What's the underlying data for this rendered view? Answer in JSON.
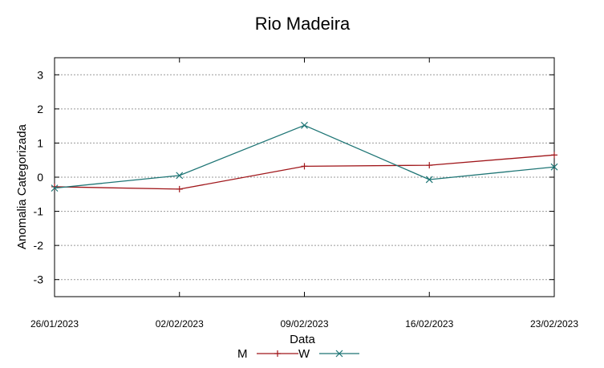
{
  "chart_data": {
    "type": "line",
    "title": "Rio Madeira",
    "xlabel": "Data",
    "ylabel": "Anomalia Categorizada",
    "categories": [
      "26/01/2023",
      "02/02/2023",
      "09/02/2023",
      "16/02/2023",
      "23/02/2023"
    ],
    "ylim": [
      -3.5,
      3.5
    ],
    "yticks": [
      "-3",
      "-2",
      "-1",
      "0",
      "1",
      "2",
      "3"
    ],
    "grid": true,
    "legend_position": "bottom",
    "series": [
      {
        "name": "M",
        "color": "#a0161a",
        "marker": "plus",
        "values": [
          -0.28,
          -0.35,
          0.32,
          0.35,
          0.65
        ]
      },
      {
        "name": "W",
        "color": "#1e7575",
        "marker": "x",
        "values": [
          -0.32,
          0.05,
          1.52,
          -0.07,
          0.3
        ]
      }
    ]
  }
}
